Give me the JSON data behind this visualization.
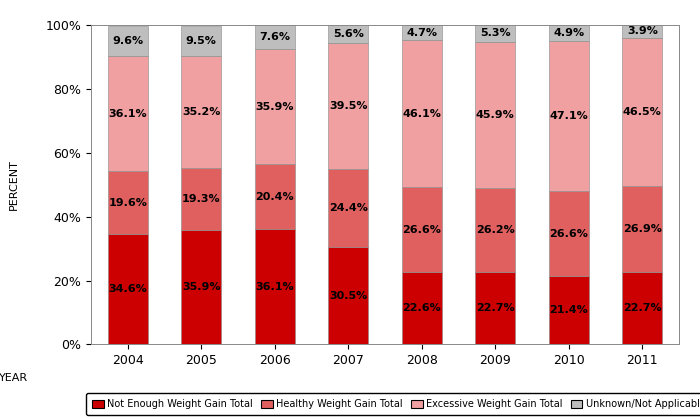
{
  "years": [
    "2004",
    "2005",
    "2006",
    "2007",
    "2008",
    "2009",
    "2010",
    "2011"
  ],
  "not_enough": [
    34.6,
    35.9,
    36.1,
    30.5,
    22.6,
    22.7,
    21.4,
    22.7
  ],
  "healthy": [
    19.6,
    19.3,
    20.4,
    24.4,
    26.6,
    26.2,
    26.6,
    26.9
  ],
  "excessive": [
    36.1,
    35.2,
    35.9,
    39.5,
    46.1,
    45.9,
    47.1,
    46.5
  ],
  "unknown": [
    9.6,
    9.5,
    7.6,
    5.6,
    4.7,
    5.3,
    4.9,
    3.9
  ],
  "color_not_enough": "#CC0000",
  "color_healthy": "#E06060",
  "color_excessive": "#F0A0A0",
  "color_unknown": "#BEBEBE",
  "ylabel": "PERCENT",
  "xlabel": "YEAR",
  "legend_labels": [
    "Not Enough Weight Gain Total",
    "Healthy Weight Gain Total",
    "Excessive Weight Gain Total",
    "Unknown/Not Applicable"
  ],
  "yticks": [
    0,
    20,
    40,
    60,
    80,
    100
  ],
  "ytick_labels": [
    "0%",
    "20%",
    "40%",
    "60%",
    "80%",
    "100%"
  ],
  "bar_width": 0.55,
  "figsize": [
    7.0,
    4.2
  ],
  "dpi": 100,
  "text_fontsize": 8.0
}
